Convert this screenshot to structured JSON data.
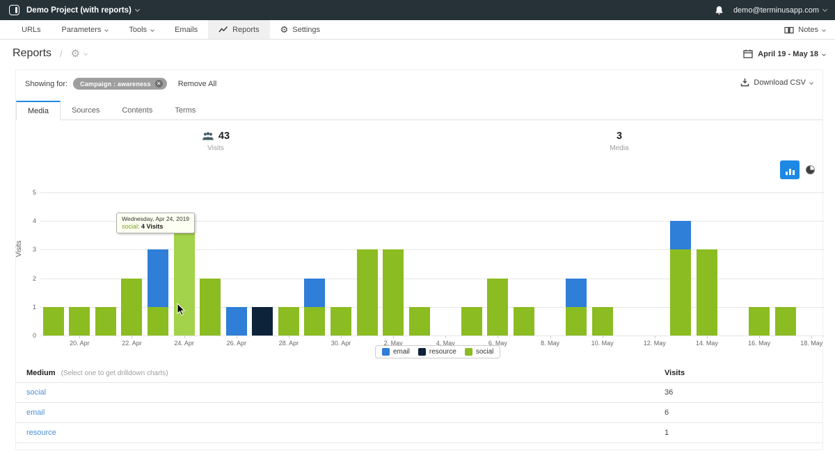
{
  "topbar": {
    "project": "Demo Project (with reports)",
    "email": "demo@terminusapp.com"
  },
  "nav": {
    "items": [
      {
        "label": "URLs",
        "icon": null,
        "dropdown": false,
        "active": false
      },
      {
        "label": "Parameters",
        "icon": null,
        "dropdown": true,
        "active": false
      },
      {
        "label": "Tools",
        "icon": null,
        "dropdown": true,
        "active": false
      },
      {
        "label": "Emails",
        "icon": null,
        "dropdown": false,
        "active": false
      },
      {
        "label": "Reports",
        "icon": "line-chart-icon",
        "dropdown": false,
        "active": true
      },
      {
        "label": "Settings",
        "icon": "gear-icon",
        "dropdown": false,
        "active": false
      }
    ],
    "notes_label": "Notes"
  },
  "header": {
    "title": "Reports",
    "separator": "/",
    "date_range": "April 19 - May 18"
  },
  "filters": {
    "showing_for": "Showing for:",
    "tag": "Campaign : awareness",
    "tag_close": "×",
    "remove_all": "Remove All",
    "download_csv": "Download CSV"
  },
  "tabs": [
    {
      "label": "Media",
      "active": true
    },
    {
      "label": "Sources",
      "active": false
    },
    {
      "label": "Contents",
      "active": false
    },
    {
      "label": "Terms",
      "active": false
    }
  ],
  "stats": {
    "visits": {
      "value": "43",
      "label": "Visits",
      "icon": "visitors-icon"
    },
    "media": {
      "value": "3",
      "label": "Media"
    }
  },
  "tooltip": {
    "date_line": "Wednesday, Apr 24, 2019",
    "series": "social",
    "separator": ": ",
    "value": "4 Visits"
  },
  "chart_data": {
    "type": "bar",
    "stacked": true,
    "title": "",
    "xlabel": "",
    "ylabel": "Visits",
    "ylim": [
      0,
      5
    ],
    "yticks": [
      0,
      1,
      2,
      3,
      4,
      5
    ],
    "grid": true,
    "legend_position": "bottom",
    "categories": [
      "19. Apr",
      "20. Apr",
      "21. Apr",
      "22. Apr",
      "23. Apr",
      "24. Apr",
      "25. Apr",
      "26. Apr",
      "27. Apr",
      "28. Apr",
      "29. Apr",
      "30. Apr",
      "1. May",
      "2. May",
      "3. May",
      "4. May",
      "5. May",
      "6. May",
      "7. May",
      "8. May",
      "9. May",
      "10. May",
      "11. May",
      "12. May",
      "13. May",
      "14. May",
      "15. May",
      "16. May",
      "17. May",
      "18. May"
    ],
    "x_tick_start": 1,
    "x_tick_every": 2,
    "series": [
      {
        "name": "social",
        "color": "#8bbc21",
        "values": [
          1,
          1,
          1,
          2,
          1,
          4,
          2,
          0,
          0,
          1,
          1,
          1,
          3,
          3,
          1,
          0,
          1,
          2,
          1,
          0,
          1,
          1,
          0,
          0,
          3,
          3,
          0,
          1,
          1,
          0
        ]
      },
      {
        "name": "resource",
        "color": "#0d233a",
        "values": [
          0,
          0,
          0,
          0,
          0,
          0,
          0,
          0,
          1,
          0,
          0,
          0,
          0,
          0,
          0,
          0,
          0,
          0,
          0,
          0,
          0,
          0,
          0,
          0,
          0,
          0,
          0,
          0,
          0,
          0
        ]
      },
      {
        "name": "email",
        "color": "#2f7ed8",
        "values": [
          0,
          0,
          0,
          0,
          2,
          0,
          0,
          1,
          0,
          0,
          1,
          0,
          0,
          0,
          0,
          0,
          0,
          0,
          0,
          0,
          1,
          0,
          0,
          0,
          1,
          0,
          0,
          0,
          0,
          0
        ]
      }
    ],
    "legend": [
      {
        "name": "email",
        "color": "#2f7ed8"
      },
      {
        "name": "resource",
        "color": "#0d233a"
      },
      {
        "name": "social",
        "color": "#8bbc21"
      }
    ],
    "highlight": {
      "index": 5,
      "series": "social",
      "color": "#a3d24b"
    }
  },
  "table": {
    "columns": {
      "medium": "Medium",
      "visits": "Visits"
    },
    "hint": "(Select one to get drilldown charts)",
    "rows": [
      {
        "medium": "social",
        "visits": "36"
      },
      {
        "medium": "email",
        "visits": "6"
      },
      {
        "medium": "resource",
        "visits": "1"
      }
    ]
  },
  "colors": {
    "topbar_bg": "#263238",
    "accent_blue": "#1e88e5",
    "link_blue": "#4a8fd4",
    "highlight_green": "#a3d24b"
  }
}
